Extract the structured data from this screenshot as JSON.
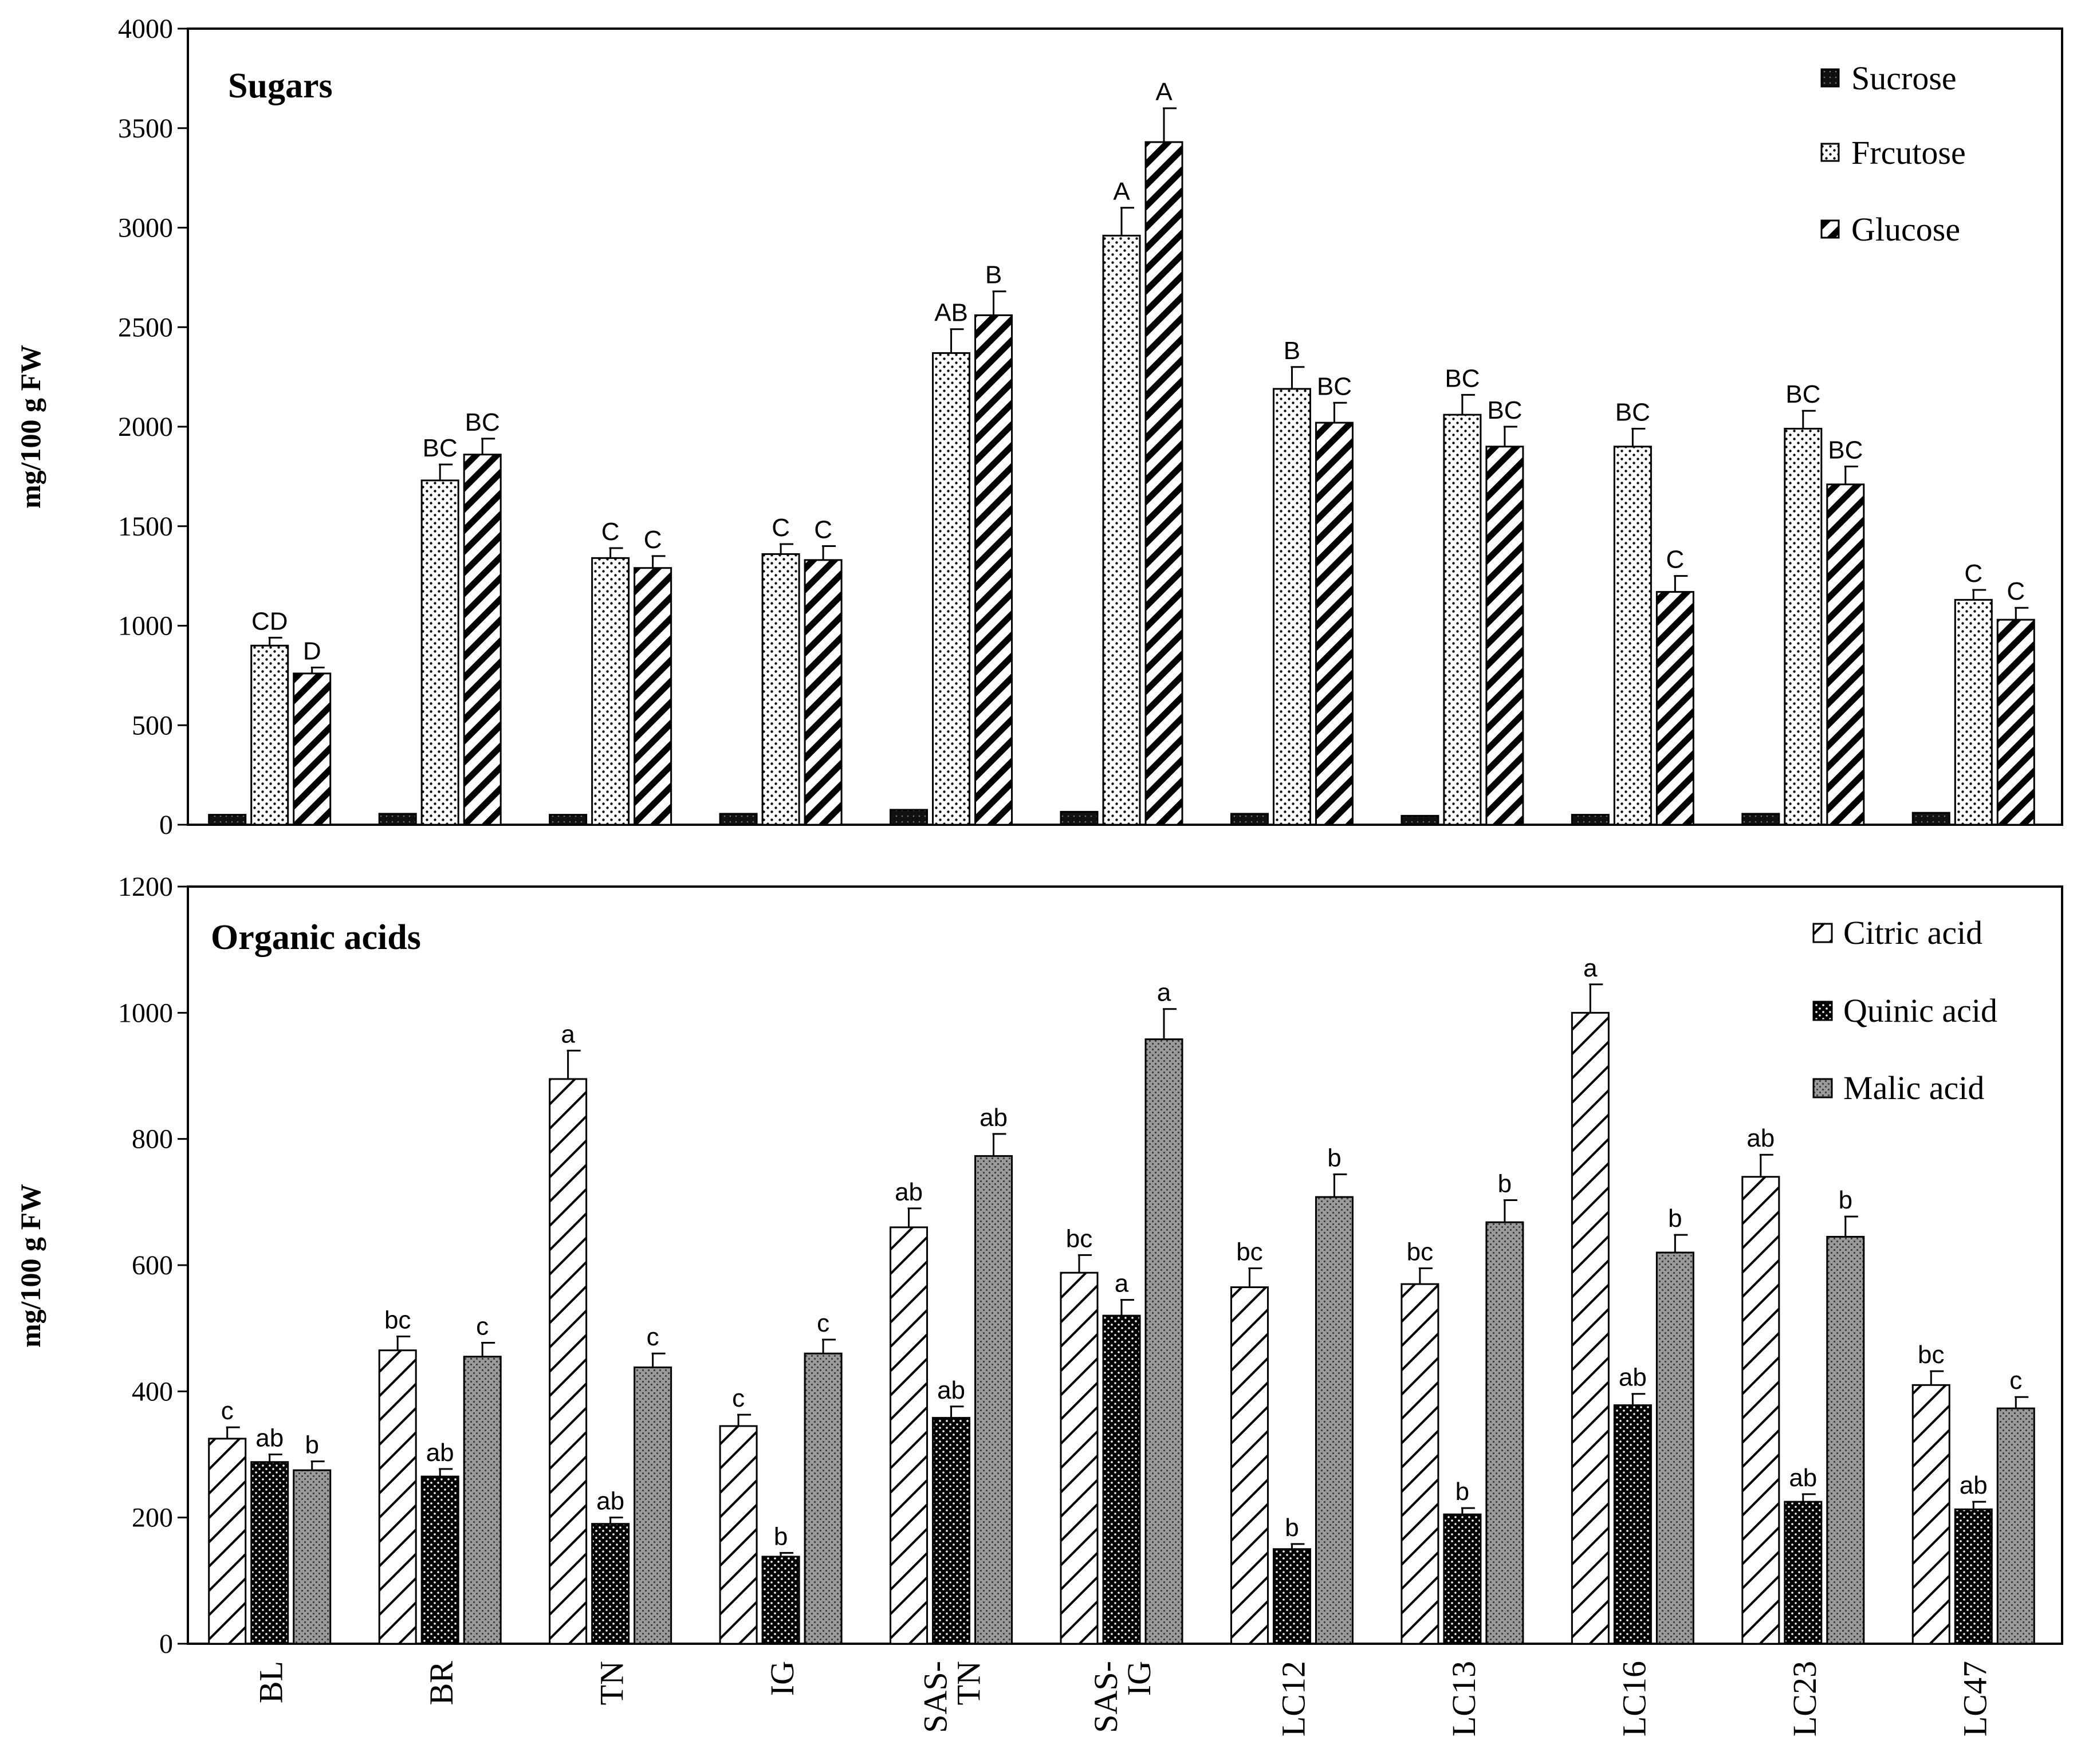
{
  "chart_data": [
    {
      "type": "bar",
      "title": "Sugars",
      "ylabel": "mg/100 g FW",
      "ylim": [
        0,
        4000
      ],
      "yticks": [
        0,
        500,
        1000,
        1500,
        2000,
        2500,
        3000,
        3500,
        4000
      ],
      "legend_position": "top-right",
      "categories": [
        "BL",
        "BR",
        "TN",
        "IG",
        "SAS-TN",
        "SAS-IG",
        "LC12",
        "LC13",
        "LC16",
        "LC23",
        "LC47"
      ],
      "series": [
        {
          "name": "Sucrose",
          "pattern": "solid-dark",
          "values": [
            50,
            55,
            50,
            55,
            75,
            65,
            55,
            45,
            50,
            55,
            60
          ],
          "errors": [
            0,
            0,
            0,
            0,
            0,
            0,
            0,
            0,
            0,
            0,
            0
          ],
          "labels": [
            "",
            "",
            "",
            "",
            "",
            "",
            "",
            "",
            "",
            "",
            ""
          ]
        },
        {
          "name": "Frcutose",
          "pattern": "dots",
          "values": [
            900,
            1730,
            1340,
            1360,
            2370,
            2960,
            2190,
            2060,
            1900,
            1990,
            1130
          ],
          "errors": [
            40,
            80,
            50,
            50,
            120,
            140,
            110,
            100,
            90,
            90,
            50
          ],
          "labels": [
            "CD",
            "BC",
            "C",
            "C",
            "AB",
            "A",
            "B",
            "BC",
            "BC",
            "BC",
            "C"
          ]
        },
        {
          "name": "Glucose",
          "pattern": "hatch",
          "values": [
            760,
            1860,
            1290,
            1330,
            2560,
            3430,
            2020,
            1900,
            1170,
            1710,
            1030
          ],
          "errors": [
            30,
            80,
            60,
            70,
            120,
            170,
            100,
            100,
            80,
            90,
            60
          ],
          "labels": [
            "D",
            "BC",
            "C",
            "C",
            "B",
            "A",
            "BC",
            "BC",
            "C",
            "BC",
            "C"
          ]
        }
      ]
    },
    {
      "type": "bar",
      "title": "Organic acids",
      "ylabel": "mg/100 g FW",
      "ylim": [
        0,
        1200
      ],
      "yticks": [
        0,
        200,
        400,
        600,
        800,
        1000,
        1200
      ],
      "legend_position": "top-right",
      "categories": [
        "BL",
        "BR",
        "TN",
        "IG",
        "SAS-TN",
        "SAS-IG",
        "LC12",
        "LC13",
        "LC16",
        "LC23",
        "LC47"
      ],
      "category_label_lines": [
        [
          "BL"
        ],
        [
          "BR"
        ],
        [
          "TN"
        ],
        [
          "IG"
        ],
        [
          "SAS-",
          "TN"
        ],
        [
          "SAS-",
          "IG"
        ],
        [
          "LC12"
        ],
        [
          "LC13"
        ],
        [
          "LC16"
        ],
        [
          "LC23"
        ],
        [
          "LC47"
        ]
      ],
      "series": [
        {
          "name": "Citric acid",
          "pattern": "diag-light",
          "values": [
            325,
            465,
            895,
            345,
            660,
            588,
            565,
            570,
            1000,
            740,
            410
          ],
          "errors": [
            18,
            22,
            45,
            18,
            30,
            28,
            30,
            25,
            45,
            35,
            22
          ],
          "labels": [
            "c",
            "bc",
            "a",
            "c",
            "ab",
            "bc",
            "bc",
            "bc",
            "a",
            "ab",
            "bc"
          ]
        },
        {
          "name": "Quinic acid",
          "pattern": "dark-dots",
          "values": [
            288,
            265,
            190,
            138,
            358,
            520,
            150,
            205,
            378,
            225,
            213
          ],
          "errors": [
            12,
            12,
            10,
            6,
            18,
            25,
            8,
            10,
            18,
            12,
            12
          ],
          "labels": [
            "ab",
            "ab",
            "ab",
            "b",
            "ab",
            "a",
            "b",
            "b",
            "ab",
            "ab",
            "ab"
          ]
        },
        {
          "name": "Malic acid",
          "pattern": "grey-dots",
          "values": [
            275,
            455,
            438,
            460,
            773,
            958,
            708,
            668,
            620,
            645,
            373
          ],
          "errors": [
            14,
            22,
            22,
            22,
            35,
            48,
            36,
            35,
            28,
            32,
            18
          ],
          "labels": [
            "b",
            "c",
            "c",
            "c",
            "ab",
            "a",
            "b",
            "b",
            "b",
            "b",
            "c"
          ]
        }
      ]
    }
  ]
}
